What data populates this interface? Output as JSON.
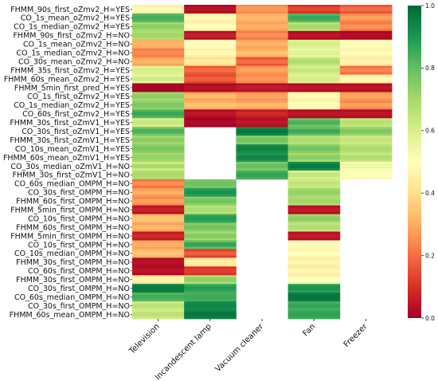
{
  "chart_data": {
    "type": "heatmap",
    "title": "",
    "xlabel": "",
    "ylabel": "",
    "colormap": "RdYlGn",
    "value_range": [
      0.0,
      1.0
    ],
    "colorbar_ticks": [
      "0.0",
      "0.2",
      "0.4",
      "0.6",
      "0.8",
      "1.0"
    ],
    "columns": [
      "Television",
      "Incandescent lamp",
      "Vacuum cleaner",
      "Fan",
      "Freezer"
    ],
    "rows": [
      "FHMM_90s_first_oZmv2_H=YES",
      "CO_1s_mean_oZmv2_H=YES",
      "CO_1s_median_oZmv2_H=YES",
      "FHMM_90s_first_oZmv2_H=NO",
      "CO_1s_mean_oZmv2_H=NO",
      "CO_1s_median_oZmv2_H=NO",
      "CO_30s_mean_oZmv2_H=NO",
      "FHMM_35s_first_oZmv2_H=YES",
      "FHMM_60s_mean_oZmv2_H=YES",
      "FHMM_5min_first_pred_H=YES",
      "CO_1s_first_oZmv2_H=YES",
      "CO_1s_median_oZmv2_H=YES",
      "CO_60s_first_oZmv2_H=YES",
      "FHMM_30s_first_oZmV1_H=YES",
      "CO_30s_first_oZmV1_H=YES",
      "FHMM_30s_first_oZmV1_H=YES",
      "CO_10s_mean_oZmV1_H=YES",
      "FHMM_60s_mean_oZmV1_H=YES",
      "CO_30s_median_oZmV1_H=NO",
      "FHMM_30s_first_oZmV1_H=NO",
      "CO_60s_median_OMPM_H=NO",
      "CO_30s_first_OMPM_H=NO",
      "FHMM_60s_first_OMPM_H=NO",
      "FHMM_5min_first_OMPM_H=NO",
      "CO_10s_first_OMPM_H=NO",
      "FHMM_60s_first_OMPM_H=NO",
      "FHMM_5min_first_OMPM_H=NO",
      "CO_10s_first_OMPM_H=NO",
      "CO_10s_median_OMPM_H=NO",
      "FHMM_30s_first_OMPM_H=NO",
      "CO_60s_first_OMPM_H=NO",
      "FHMM_30s_first_OMPM_H=NO",
      "CO_30s_first_OMPM_H=NO",
      "CO_60s_median_OMPM_H=NO",
      "CO_30s_first_OMPM_H=NO",
      "FHMM_60s_mean_OMPM_H=NO"
    ],
    "segments": [
      [
        [
          0.45,
          0.55
        ],
        [
          0.82,
          0.85
        ],
        [
          0.7,
          0.76
        ],
        [
          0.68,
          0.72
        ],
        [
          0.3,
          0.32
        ],
        [
          0.22,
          0.26
        ],
        [
          0.28,
          0.33
        ],
        [
          0.58,
          0.62
        ],
        [
          0.56,
          0.65
        ],
        [
          0.0,
          0.02
        ],
        [
          0.7,
          0.76
        ],
        [
          0.73,
          0.78
        ],
        [
          0.82,
          0.88
        ],
        [
          0.6,
          0.65
        ],
        [
          0.78,
          0.86
        ],
        [
          0.7,
          0.76
        ],
        [
          0.74,
          0.78
        ],
        [
          0.7,
          0.74
        ],
        [
          0.62,
          0.72
        ],
        [
          0.68,
          0.7
        ],
        [
          0.2,
          0.28
        ],
        [
          0.27,
          0.32
        ],
        [
          0.24,
          0.3
        ],
        [
          0.04,
          0.08
        ],
        [
          0.32,
          0.36
        ],
        [
          0.28,
          0.34
        ],
        [
          0.05,
          0.1
        ],
        [
          0.28,
          0.32
        ],
        [
          0.32,
          0.36
        ],
        [
          0.02,
          0.05
        ],
        [
          0.02,
          0.06
        ],
        [
          0.42,
          0.48
        ],
        [
          0.95,
          0.97
        ],
        [
          0.82,
          0.86
        ],
        [
          0.62,
          0.68
        ],
        [
          0.62,
          0.68
        ]
      ],
      [
        [
          0.02,
          0.05
        ],
        [
          0.45,
          0.5
        ],
        [
          0.46,
          0.52
        ],
        [
          0.03,
          0.08
        ],
        [
          0.48,
          0.52
        ],
        [
          0.45,
          0.5
        ],
        [
          0.4,
          0.46
        ],
        [
          0.16,
          0.22
        ],
        [
          0.14,
          0.2
        ],
        [
          0.02,
          0.05
        ],
        [
          0.28,
          0.35
        ],
        [
          0.3,
          0.36
        ],
        [
          0.02,
          0.06
        ],
        [
          0.0,
          0.03
        ],
        null,
        null,
        null,
        null,
        null,
        null,
        [
          0.76,
          0.8
        ],
        [
          0.88,
          0.92
        ],
        [
          0.74,
          0.8
        ],
        [
          0.66,
          0.7
        ],
        [
          0.86,
          0.9
        ],
        [
          0.74,
          0.8
        ],
        [
          0.7,
          0.78
        ],
        [
          0.8,
          0.9
        ],
        [
          0.12,
          0.2
        ],
        [
          0.42,
          0.46
        ],
        [
          0.1,
          0.14
        ],
        [
          0.68,
          0.76
        ],
        [
          0.86,
          0.9
        ],
        [
          0.84,
          0.86
        ],
        [
          0.92,
          0.95
        ],
        [
          0.95,
          0.98
        ]
      ],
      [
        [
          0.25,
          0.28
        ],
        [
          0.3,
          0.34
        ],
        [
          0.28,
          0.32
        ],
        [
          0.22,
          0.28
        ],
        [
          0.28,
          0.34
        ],
        [
          0.3,
          0.36
        ],
        [
          0.16,
          0.22
        ],
        [
          0.26,
          0.3
        ],
        [
          0.24,
          0.28
        ],
        [
          0.03,
          0.07
        ],
        [
          0.26,
          0.3
        ],
        [
          0.28,
          0.34
        ],
        [
          0.05,
          0.1
        ],
        [
          0.03,
          0.06
        ],
        [
          0.94,
          0.98
        ],
        [
          0.74,
          0.8
        ],
        [
          0.92,
          0.96
        ],
        [
          0.9,
          0.96
        ],
        [
          0.76,
          0.82
        ],
        [
          0.84,
          0.88
        ],
        null,
        null,
        null,
        null,
        null,
        null,
        null,
        null,
        null,
        null,
        null,
        null,
        null,
        null,
        null,
        null
      ],
      [
        [
          0.1,
          0.16
        ],
        [
          0.82,
          0.88
        ],
        [
          0.66,
          0.72
        ],
        [
          0.02,
          0.06
        ],
        [
          0.58,
          0.62
        ],
        [
          0.55,
          0.6
        ],
        [
          0.64,
          0.7
        ],
        [
          0.6,
          0.66
        ],
        [
          0.58,
          0.62
        ],
        [
          0.02,
          0.06
        ],
        [
          0.46,
          0.5
        ],
        [
          0.46,
          0.52
        ],
        [
          0.02,
          0.06
        ],
        [
          0.78,
          0.86
        ],
        [
          0.8,
          0.88
        ],
        [
          0.66,
          0.7
        ],
        [
          0.74,
          0.8
        ],
        [
          0.7,
          0.76
        ],
        [
          0.92,
          0.98
        ],
        [
          0.6,
          0.66
        ],
        [
          0.62,
          0.66
        ],
        [
          0.7,
          0.74
        ],
        [
          0.68,
          0.72
        ],
        [
          0.03,
          0.07
        ],
        [
          0.7,
          0.76
        ],
        [
          0.64,
          0.7
        ],
        [
          0.03,
          0.07
        ],
        [
          0.48,
          0.52
        ],
        [
          0.46,
          0.52
        ],
        [
          0.44,
          0.5
        ],
        [
          0.44,
          0.5
        ],
        [
          0.46,
          0.52
        ],
        [
          0.88,
          0.92
        ],
        [
          0.96,
          0.98
        ],
        [
          0.84,
          0.88
        ],
        [
          0.86,
          0.88
        ]
      ],
      [
        [
          0.16,
          0.22
        ],
        [
          0.24,
          0.3
        ],
        [
          0.22,
          0.28
        ],
        [
          0.01,
          0.04
        ],
        [
          0.48,
          0.52
        ],
        [
          0.46,
          0.5
        ],
        [
          0.44,
          0.48
        ],
        [
          0.2,
          0.26
        ],
        [
          0.44,
          0.5
        ],
        [
          0.02,
          0.06
        ],
        [
          0.26,
          0.3
        ],
        [
          0.24,
          0.3
        ],
        [
          0.02,
          0.06
        ],
        [
          0.64,
          0.68
        ],
        [
          0.72,
          0.78
        ],
        [
          0.62,
          0.66
        ],
        [
          0.66,
          0.7
        ],
        [
          0.64,
          0.7
        ],
        [
          0.52,
          0.56
        ],
        [
          0.48,
          0.52
        ],
        null,
        null,
        null,
        null,
        null,
        null,
        null,
        null,
        null,
        null,
        null,
        null,
        null,
        null,
        null,
        null
      ]
    ],
    "note": "Each row is a band whose cell colors vary between the two values shown (approximate score range read from the colormap); null means no data (white)."
  }
}
